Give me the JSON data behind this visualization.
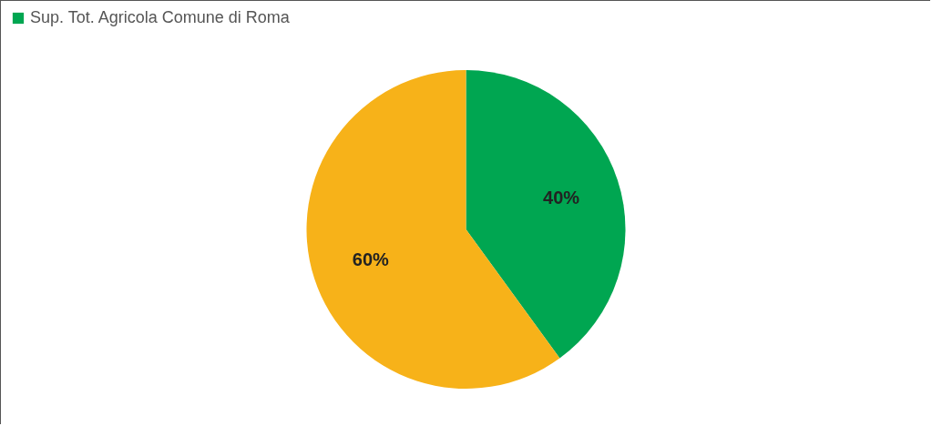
{
  "chart_data": {
    "type": "pie",
    "categories": [
      "Sup. Tot. Agricola Comune di Roma",
      null
    ],
    "values": [
      40,
      60
    ],
    "colors": [
      "#00a651",
      "#f7b219"
    ],
    "value_labels": [
      "40%",
      "60%"
    ],
    "legend": "top"
  }
}
